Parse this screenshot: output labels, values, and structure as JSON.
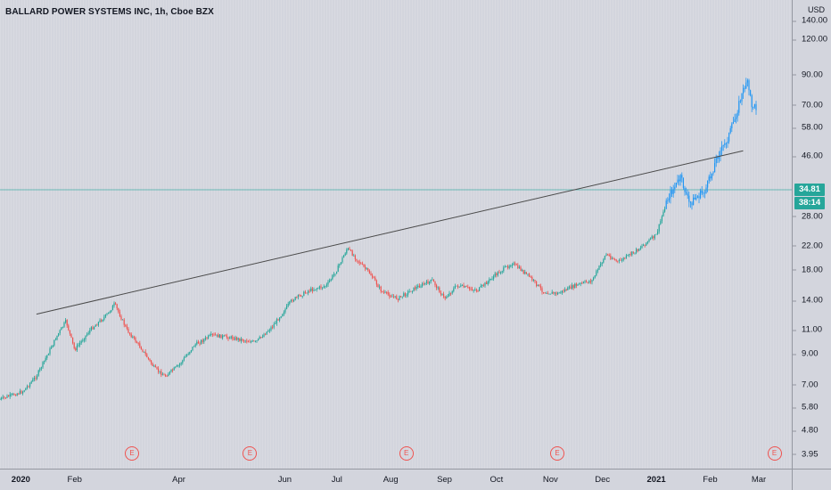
{
  "symbol_title": "BALLARD POWER SYSTEMS INC, 1h, Cboe BZX",
  "currency": "USD",
  "last_price": "34.81",
  "countdown": "38:14",
  "colors": {
    "up": "#26a69a",
    "down": "#ef5350",
    "recent": "#2196f3",
    "trendline": "#4a4a4a",
    "price_line": "#26a69a"
  },
  "price_ticks": [
    "140.00",
    "120.00",
    "90.00",
    "70.00",
    "58.00",
    "46.00",
    "28.00",
    "22.00",
    "18.00",
    "14.00",
    "11.00",
    "9.00",
    "7.00",
    "5.80",
    "4.80",
    "3.95"
  ],
  "time_labels": [
    {
      "text": "2020",
      "bold": true
    },
    {
      "text": "Feb",
      "bold": false
    },
    {
      "text": "Apr",
      "bold": false
    },
    {
      "text": "Jun",
      "bold": false
    },
    {
      "text": "Jul",
      "bold": false
    },
    {
      "text": "Aug",
      "bold": false
    },
    {
      "text": "Sep",
      "bold": false
    },
    {
      "text": "Oct",
      "bold": false
    },
    {
      "text": "Nov",
      "bold": false
    },
    {
      "text": "Dec",
      "bold": false
    },
    {
      "text": "2021",
      "bold": true
    },
    {
      "text": "Feb",
      "bold": false
    },
    {
      "text": "Mar",
      "bold": false
    }
  ],
  "earnings": [
    {
      "label": "E"
    },
    {
      "label": "E"
    },
    {
      "label": "E"
    },
    {
      "label": "E"
    },
    {
      "label": "E"
    }
  ],
  "chart_data": {
    "type": "line",
    "scale": "log",
    "x_range": [
      "2019-12-20",
      "2021-03-20"
    ],
    "y_range": [
      3.95,
      140
    ],
    "price_series": {
      "x": [
        "2019-12-20",
        "2020-01-02",
        "2020-01-10",
        "2020-01-22",
        "2020-01-27",
        "2020-02-01",
        "2020-02-10",
        "2020-02-20",
        "2020-02-24",
        "2020-03-02",
        "2020-03-10",
        "2020-03-18",
        "2020-03-24",
        "2020-04-01",
        "2020-04-10",
        "2020-04-20",
        "2020-05-01",
        "2020-05-15",
        "2020-05-25",
        "2020-06-05",
        "2020-06-15",
        "2020-06-25",
        "2020-07-01",
        "2020-07-07",
        "2020-07-10",
        "2020-07-15",
        "2020-07-20",
        "2020-07-27",
        "2020-08-05",
        "2020-08-15",
        "2020-08-25",
        "2020-09-01",
        "2020-09-08",
        "2020-09-20",
        "2020-10-01",
        "2020-10-10",
        "2020-10-20",
        "2020-10-28",
        "2020-11-05",
        "2020-11-15",
        "2020-11-25",
        "2020-12-03",
        "2020-12-10",
        "2020-12-20",
        "2020-12-28",
        "2021-01-01",
        "2021-01-05",
        "2021-01-08",
        "2021-01-12",
        "2021-01-15",
        "2021-01-20",
        "2021-01-25",
        "2021-01-29",
        "2021-02-02",
        "2021-02-05",
        "2021-02-09",
        "2021-02-12",
        "2021-02-15",
        "2021-02-18",
        "2021-02-22",
        "2021-02-25",
        "2021-02-28"
      ],
      "y": [
        6.2,
        6.6,
        7.5,
        10.5,
        11.8,
        9.3,
        11.0,
        12.5,
        13.6,
        11.0,
        9.5,
        8.0,
        7.5,
        8.2,
        9.7,
        10.5,
        10.3,
        9.9,
        11.3,
        14.0,
        15.2,
        15.8,
        18.0,
        21.5,
        20.5,
        18.8,
        17.5,
        15.0,
        14.2,
        15.5,
        16.5,
        14.2,
        15.8,
        15.2,
        17.4,
        19.0,
        17.0,
        15.0,
        14.8,
        15.8,
        16.5,
        20.5,
        19.2,
        21.0,
        23.0,
        24.0,
        29.0,
        33.0,
        36.0,
        38.5,
        31.0,
        33.0,
        34.5,
        40.0,
        46.0,
        50.0,
        55.0,
        62.0,
        72.0,
        86.0,
        70.0,
        68.0
      ]
    },
    "trendline": {
      "x": [
        "2020-01-10",
        "2021-02-20"
      ],
      "y": [
        12.5,
        48.0
      ]
    },
    "last_price": 34.81,
    "earnings_dates": [
      "2020-03-05",
      "2020-05-12",
      "2020-08-10",
      "2020-11-05",
      "2021-03-10"
    ]
  }
}
